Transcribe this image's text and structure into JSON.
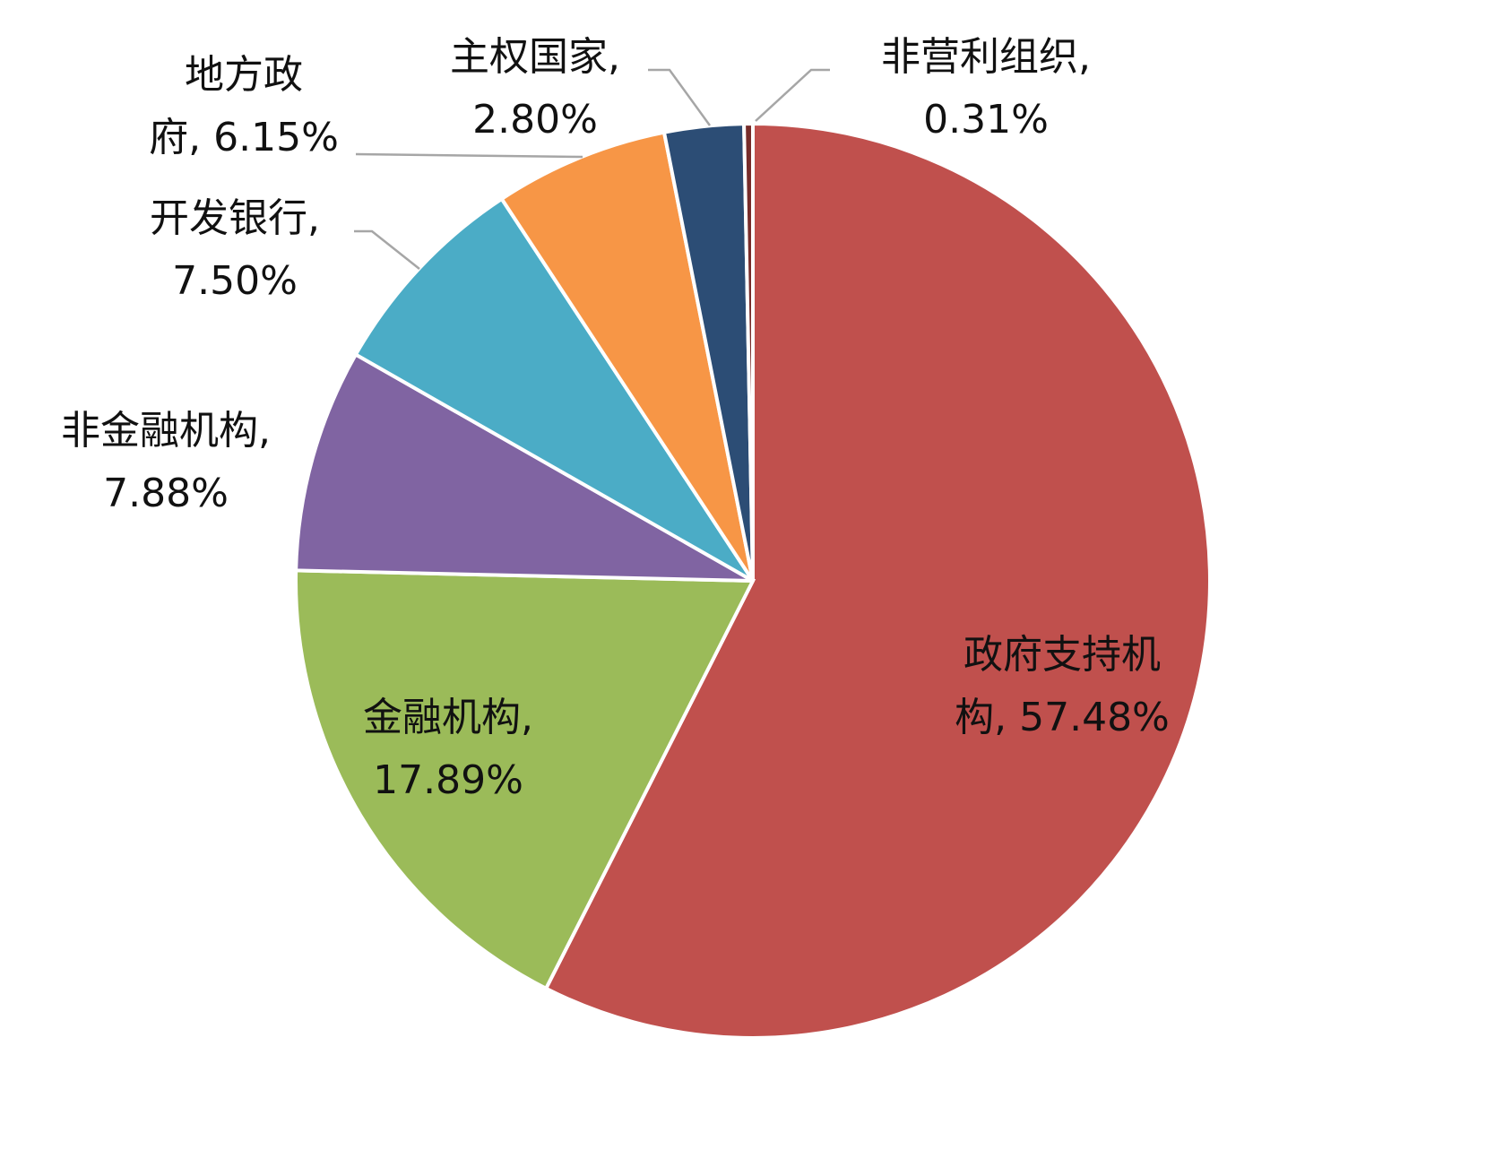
{
  "chart_data": {
    "type": "pie",
    "start_angle_deg": 0,
    "direction": "clockwise",
    "legend": "none",
    "slices": [
      {
        "name": "政府支持机构",
        "value": 57.48,
        "label_lines": [
          "政府支持机",
          "构, 57.48%"
        ],
        "color": "#C0504D",
        "label_inside": true
      },
      {
        "name": "金融机构",
        "value": 17.89,
        "label_lines": [
          "金融机构,",
          "17.89%"
        ],
        "color": "#9BBB59",
        "label_inside": true
      },
      {
        "name": "非金融机构",
        "value": 7.88,
        "label_lines": [
          "非金融机构,",
          "7.88%"
        ],
        "color": "#8064A2",
        "label_inside": false
      },
      {
        "name": "开发银行",
        "value": 7.5,
        "label_lines": [
          "开发银行,",
          "7.50%"
        ],
        "color": "#4BACC6",
        "label_inside": false
      },
      {
        "name": "地方政府",
        "value": 6.15,
        "label_lines": [
          "地方政",
          "府, 6.15%"
        ],
        "color": "#F79646",
        "label_inside": false
      },
      {
        "name": "主权国家",
        "value": 2.8,
        "label_lines": [
          "主权国家,",
          "2.80%"
        ],
        "color": "#2C4D75",
        "label_inside": false
      },
      {
        "name": "非营利组织",
        "value": 0.31,
        "label_lines": [
          "非营利组织,",
          "0.31%"
        ],
        "color": "#772C2A",
        "label_inside": false
      }
    ]
  }
}
